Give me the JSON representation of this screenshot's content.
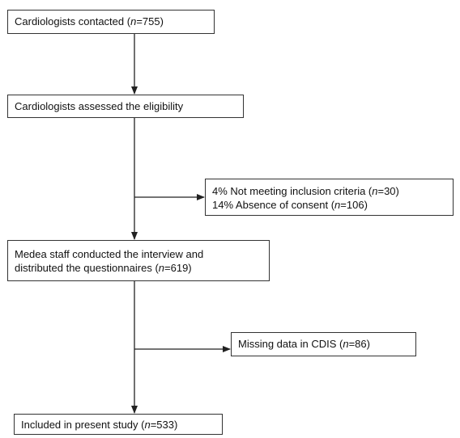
{
  "nodes": [
    {
      "lines": [
        [
          "Cardiologists contacted (",
          "n",
          "=755)"
        ]
      ]
    },
    {
      "lines": [
        [
          "Cardiologists assessed the eligibility"
        ]
      ]
    },
    {
      "lines": [
        [
          "4% Not meeting inclusion criteria (",
          "n",
          "=30)"
        ],
        [
          "14% Absence of consent (",
          "n",
          "=106)"
        ]
      ]
    },
    {
      "lines": [
        [
          "Medea staff conducted the interview and"
        ],
        [
          "distributed the questionnaires (",
          "n",
          "=619)"
        ]
      ]
    },
    {
      "lines": [
        [
          "Missing data in CDIS (",
          "n",
          "=86)"
        ]
      ]
    },
    {
      "lines": [
        [
          "Included in present study (",
          "n",
          "=533)"
        ]
      ]
    }
  ]
}
